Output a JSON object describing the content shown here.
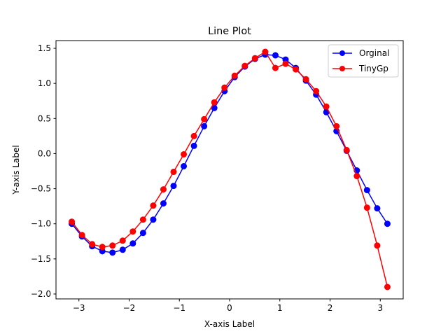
{
  "chart_data": {
    "type": "line",
    "title": "Line Plot",
    "xlabel": "X-axis Label",
    "ylabel": "Y-axis Label",
    "xlim": [
      -3.456,
      3.456
    ],
    "ylim": [
      -2.07,
      1.61
    ],
    "xticks": [
      -3,
      -2,
      -1,
      0,
      1,
      2,
      3
    ],
    "xtick_labels": [
      "−3",
      "−2",
      "−1",
      "0",
      "1",
      "2",
      "3"
    ],
    "yticks": [
      -2.0,
      -1.5,
      -1.0,
      -0.5,
      0.0,
      0.5,
      1.0,
      1.5
    ],
    "ytick_labels": [
      "−2.0",
      "−1.5",
      "−1.0",
      "−0.5",
      "0.0",
      "0.5",
      "1.0",
      "1.5"
    ],
    "grid": false,
    "legend_position": "top-right",
    "x": [
      -3.1416,
      -2.9389,
      -2.7362,
      -2.5335,
      -2.3309,
      -2.1282,
      -1.9255,
      -1.7228,
      -1.5201,
      -1.3175,
      -1.1148,
      -0.9121,
      -0.7094,
      -0.5067,
      -0.304,
      -0.1013,
      0.1013,
      0.304,
      0.5067,
      0.7094,
      0.9121,
      1.1148,
      1.3175,
      1.5201,
      1.7228,
      1.9255,
      2.1282,
      2.3309,
      2.5335,
      2.7362,
      2.9389,
      3.1416
    ],
    "series": [
      {
        "name": "Orginal",
        "color": "#0000ff",
        "values": [
          -1.0,
          -1.18,
          -1.32,
          -1.39,
          -1.41,
          -1.37,
          -1.28,
          -1.13,
          -0.94,
          -0.71,
          -0.46,
          -0.18,
          0.11,
          0.39,
          0.65,
          0.89,
          1.09,
          1.24,
          1.35,
          1.41,
          1.4,
          1.34,
          1.22,
          1.04,
          0.84,
          0.59,
          0.32,
          0.04,
          -0.24,
          -0.52,
          -0.78,
          -1.0
        ]
      },
      {
        "name": "TinyGp",
        "color": "#ff0000",
        "values": [
          -0.97,
          -1.16,
          -1.29,
          -1.33,
          -1.31,
          -1.24,
          -1.11,
          -0.94,
          -0.74,
          -0.51,
          -0.26,
          -0.01,
          0.25,
          0.49,
          0.73,
          0.94,
          1.11,
          1.25,
          1.36,
          1.45,
          1.22,
          1.28,
          1.2,
          1.06,
          0.89,
          0.67,
          0.39,
          0.05,
          -0.32,
          -0.77,
          -1.31,
          -1.9
        ]
      }
    ]
  }
}
